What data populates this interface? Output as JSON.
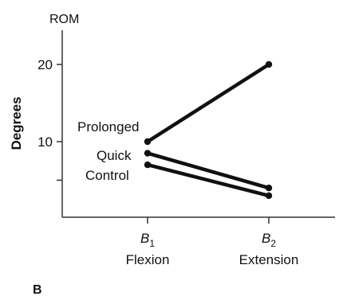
{
  "chart_data": {
    "type": "line",
    "unit_label": "ROM",
    "ylabel": "Degrees",
    "xlabel": "",
    "categories": [
      {
        "symbol": "B",
        "subscript": "1",
        "name": "Flexion"
      },
      {
        "symbol": "B",
        "subscript": "2",
        "name": "Extension"
      }
    ],
    "yticks": [
      10,
      20
    ],
    "ylim": [
      0,
      25
    ],
    "grid": false,
    "series": [
      {
        "name": "Prolonged",
        "values": [
          10,
          20
        ],
        "color": "#111111"
      },
      {
        "name": "Quick",
        "values": [
          8.5,
          4
        ],
        "color": "#111111"
      },
      {
        "name": "Control",
        "values": [
          7,
          3
        ],
        "color": "#111111"
      }
    ],
    "panel_label": "B"
  }
}
